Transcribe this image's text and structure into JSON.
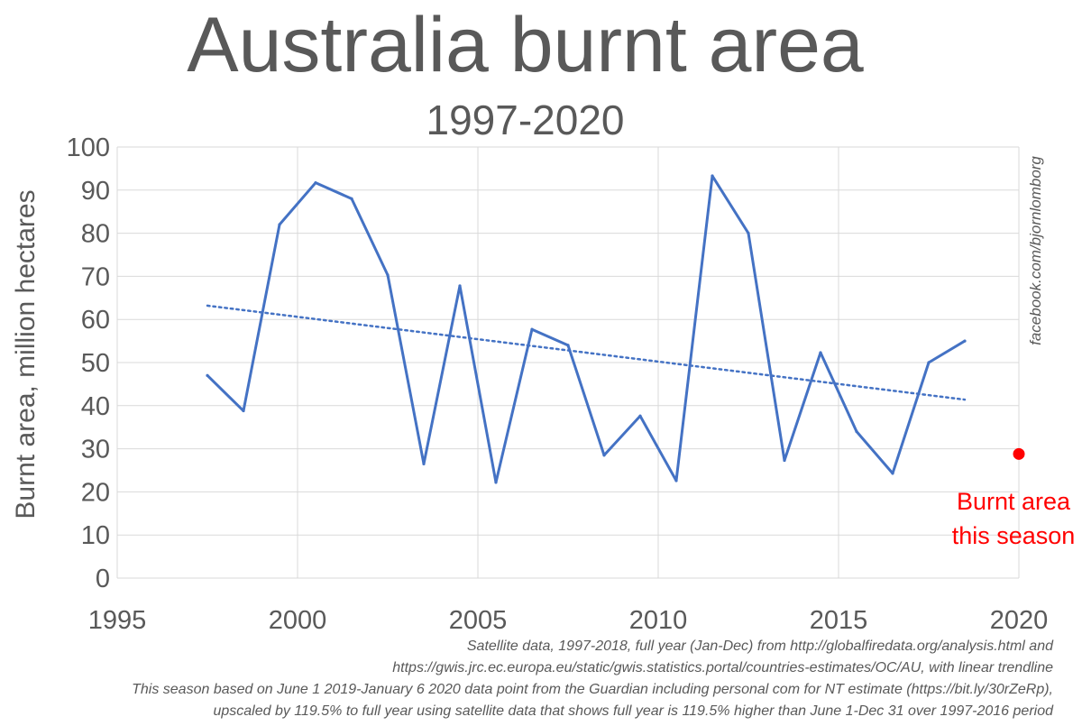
{
  "chart_data": {
    "type": "line",
    "title": "Australia burnt area",
    "subtitle": "1997-2020",
    "ylabel": "Burnt area, million hectares",
    "xlim": [
      1995,
      2020
    ],
    "ylim": [
      0,
      100
    ],
    "x_ticks": [
      1995,
      2000,
      2005,
      2010,
      2015,
      2020
    ],
    "y_ticks": [
      0,
      10,
      20,
      30,
      40,
      50,
      60,
      70,
      80,
      90,
      100
    ],
    "grid": true,
    "series": [
      {
        "x": [
          1997.5,
          1998.5,
          1999.5,
          2000.5,
          2001.5,
          2002.5,
          2003.5,
          2004.5,
          2005.5,
          2006.5,
          2007.5,
          2008.5,
          2009.5,
          2010.5,
          2011.5,
          2012.5,
          2013.5,
          2014.5,
          2015.5,
          2016.5,
          2017.5,
          2018.5
        ],
        "values": [
          47,
          38.8,
          82,
          91.7,
          88,
          70.3,
          26.5,
          67.8,
          22.2,
          57.7,
          54,
          28.5,
          37.6,
          22.6,
          93.3,
          80,
          27.3,
          52.3,
          34,
          24.3,
          50,
          55
        ],
        "color": "#4472c4"
      }
    ],
    "trendline": {
      "x": [
        1997.5,
        2018.5
      ],
      "values": [
        63.2,
        41.4
      ],
      "color": "#4472c4",
      "style": "dotted"
    },
    "highlight_point": {
      "x": 2020,
      "value": 28.8,
      "color": "#ff0000"
    },
    "annotation": {
      "lines": [
        "Burnt area",
        "this season"
      ],
      "color": "#ff0000"
    },
    "watermark": "facebook.com/bjornlomborg"
  },
  "footnotes": [
    "Satellite data, 1997-2018, full year (Jan-Dec) from http://globalfiredata.org/analysis.html and",
    "https://gwis.jrc.ec.europa.eu/static/gwis.statistics.portal/countries-estimates/OC/AU, with linear trendline",
    "This season based on June 1 2019-January 6 2020 data point from the Guardian including personal com for NT estimate (https://bit.ly/30rZeRp),",
    "upscaled by 119.5% to full year using satellite data that shows full year is 119.5% higher than June 1-Dec 31 over 1997-2016 period"
  ]
}
